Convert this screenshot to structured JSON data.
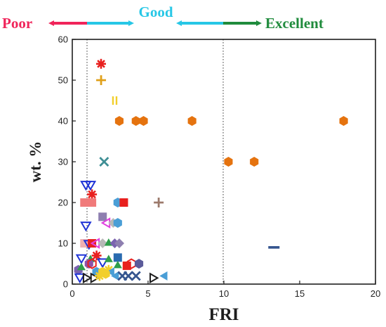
{
  "banner": {
    "poor": {
      "label": "Poor",
      "color": "#f0245a"
    },
    "good": {
      "label": "Good",
      "color": "#27c7e6"
    },
    "excellent": {
      "label": "Excellent",
      "color": "#1f8b3c"
    },
    "arrow_left_colors": [
      "#f0245a",
      "#27c7e6"
    ],
    "arrow_right_colors": [
      "#27c7e6",
      "#1f8b3c"
    ]
  },
  "chart_data": {
    "type": "scatter",
    "title": "",
    "xlabel": "FRI",
    "ylabel": "wt. %",
    "xlim": [
      0,
      20
    ],
    "ylim": [
      0,
      60
    ],
    "x_ticks": [
      0,
      5,
      10,
      15,
      20
    ],
    "y_ticks": [
      0,
      10,
      20,
      30,
      40,
      50,
      60
    ],
    "grid": false,
    "reference_lines": [
      {
        "x": 1,
        "style": "dotted"
      },
      {
        "x": 10,
        "style": "dotted"
      }
    ],
    "points": [
      {
        "x": 1.9,
        "y": 54,
        "marker": "asterisk",
        "color": "#e8201e"
      },
      {
        "x": 1.9,
        "y": 50,
        "marker": "plus",
        "color": "#e0a01a"
      },
      {
        "x": 2.8,
        "y": 45,
        "marker": "dbar",
        "color": "#f2cf2a"
      },
      {
        "x": 3.1,
        "y": 40,
        "marker": "hexagon",
        "color": "#e5730f"
      },
      {
        "x": 4.2,
        "y": 40,
        "marker": "hexagon",
        "color": "#e5730f"
      },
      {
        "x": 4.7,
        "y": 40,
        "marker": "hexagon",
        "color": "#e5730f"
      },
      {
        "x": 7.9,
        "y": 40,
        "marker": "hexagon",
        "color": "#e5730f"
      },
      {
        "x": 17.9,
        "y": 40,
        "marker": "hexagon",
        "color": "#e5730f"
      },
      {
        "x": 10.3,
        "y": 30,
        "marker": "hexagon",
        "color": "#e5730f"
      },
      {
        "x": 12.0,
        "y": 30,
        "marker": "hexagon",
        "color": "#e5730f"
      },
      {
        "x": 2.1,
        "y": 30,
        "marker": "x",
        "color": "#3f8f95"
      },
      {
        "x": 0.9,
        "y": 24.5,
        "marker": "triangle-down-open",
        "color": "#1f33d6"
      },
      {
        "x": 1.2,
        "y": 24.5,
        "marker": "triangle-down-open",
        "color": "#1f33d6"
      },
      {
        "x": 1.3,
        "y": 22,
        "marker": "asterisk",
        "color": "#e8201e"
      },
      {
        "x": 0.8,
        "y": 20,
        "marker": "square",
        "color": "#f07a7a"
      },
      {
        "x": 1.3,
        "y": 20,
        "marker": "square",
        "color": "#f07a7a"
      },
      {
        "x": 3.0,
        "y": 20,
        "marker": "hexagon",
        "color": "#4a9ed6"
      },
      {
        "x": 3.4,
        "y": 20,
        "marker": "square",
        "color": "#e8201e"
      },
      {
        "x": 5.7,
        "y": 20,
        "marker": "plus",
        "color": "#9c7a6c"
      },
      {
        "x": 2.0,
        "y": 16.5,
        "marker": "square",
        "color": "#8e7fb0"
      },
      {
        "x": 0.9,
        "y": 14.5,
        "marker": "triangle-down-open",
        "color": "#1f33d6"
      },
      {
        "x": 2.3,
        "y": 15,
        "marker": "triangle-left-open",
        "color": "#e040e0"
      },
      {
        "x": 2.7,
        "y": 15,
        "marker": "diamond",
        "color": "#b8b8b8"
      },
      {
        "x": 3.0,
        "y": 15,
        "marker": "hexagon",
        "color": "#4a9ed6"
      },
      {
        "x": 13.3,
        "y": 9,
        "marker": "hbar",
        "color": "#35558f"
      },
      {
        "x": 0.8,
        "y": 10,
        "marker": "square",
        "color": "#f0b0b0"
      },
      {
        "x": 1.1,
        "y": 10,
        "marker": "triangle-down-open",
        "color": "#1f33d6"
      },
      {
        "x": 1.3,
        "y": 10,
        "marker": "square",
        "color": "#e8201e"
      },
      {
        "x": 1.6,
        "y": 10,
        "marker": "triangle-left-open",
        "color": "#e040e0"
      },
      {
        "x": 2.0,
        "y": 10,
        "marker": "diamond",
        "color": "#b8b8b8"
      },
      {
        "x": 2.4,
        "y": 10,
        "marker": "triangle",
        "color": "#2e9e4a"
      },
      {
        "x": 2.8,
        "y": 10,
        "marker": "diamond",
        "color": "#7a62b0"
      },
      {
        "x": 3.1,
        "y": 10,
        "marker": "diamond",
        "color": "#8e7fb0"
      },
      {
        "x": 0.6,
        "y": 6.5,
        "marker": "triangle-down-open",
        "color": "#1f33d6"
      },
      {
        "x": 1.2,
        "y": 6,
        "marker": "triangle",
        "color": "#2e9e4a"
      },
      {
        "x": 1.6,
        "y": 7,
        "marker": "asterisk",
        "color": "#e8201e"
      },
      {
        "x": 2.0,
        "y": 5.5,
        "marker": "triangle-down-open",
        "color": "#1f33d6"
      },
      {
        "x": 2.4,
        "y": 6,
        "marker": "triangle",
        "color": "#2e9e4a"
      },
      {
        "x": 3.0,
        "y": 6.5,
        "marker": "square",
        "color": "#2a6bb0"
      },
      {
        "x": 1.1,
        "y": 5,
        "marker": "hexagon",
        "color": "#8c52a8"
      },
      {
        "x": 1.3,
        "y": 5,
        "marker": "hexagon-open",
        "color": "#e8201e"
      },
      {
        "x": 3.0,
        "y": 4.5,
        "marker": "triangle",
        "color": "#2e9e4a"
      },
      {
        "x": 3.6,
        "y": 4.5,
        "marker": "square",
        "color": "#e8201e"
      },
      {
        "x": 0.4,
        "y": 3.5,
        "marker": "hexagon",
        "color": "#7a62b0"
      },
      {
        "x": 0.6,
        "y": 4,
        "marker": "triangle",
        "color": "#2e9e4a"
      },
      {
        "x": 1.6,
        "y": 3,
        "marker": "hexagon",
        "color": "#4a9ed6"
      },
      {
        "x": 2.0,
        "y": 3,
        "marker": "hexagon",
        "color": "#f2cf2a"
      },
      {
        "x": 2.4,
        "y": 3.5,
        "marker": "asterisk",
        "color": "#f2cf2a"
      },
      {
        "x": 2.6,
        "y": 3,
        "marker": "triangle-left",
        "color": "#4a9ed6"
      },
      {
        "x": 3.9,
        "y": 5,
        "marker": "hexagon-open",
        "color": "#e8201e"
      },
      {
        "x": 4.4,
        "y": 5,
        "marker": "hexagon",
        "color": "#5b5b9a"
      },
      {
        "x": 0.5,
        "y": 1.8,
        "marker": "triangle-down-open",
        "color": "#1f33d6"
      },
      {
        "x": 0.9,
        "y": 1.5,
        "marker": "triangle-right-open",
        "color": "#1e1e1e"
      },
      {
        "x": 1.4,
        "y": 1.5,
        "marker": "triangle-right-open",
        "color": "#1e1e1e"
      },
      {
        "x": 1.8,
        "y": 2,
        "marker": "asterisk",
        "color": "#f2cf2a"
      },
      {
        "x": 2.2,
        "y": 2.5,
        "marker": "hexagon",
        "color": "#f2cf2a"
      },
      {
        "x": 2.9,
        "y": 2,
        "marker": "triangle-left",
        "color": "#4a9ed6"
      },
      {
        "x": 3.3,
        "y": 2,
        "marker": "x",
        "color": "#35558f"
      },
      {
        "x": 3.7,
        "y": 2,
        "marker": "x",
        "color": "#35558f"
      },
      {
        "x": 4.2,
        "y": 2,
        "marker": "x",
        "color": "#35558f"
      },
      {
        "x": 5.3,
        "y": 1.5,
        "marker": "triangle-right-open",
        "color": "#1e1e1e"
      },
      {
        "x": 6.1,
        "y": 2,
        "marker": "triangle-left",
        "color": "#4a9ed6"
      }
    ]
  }
}
